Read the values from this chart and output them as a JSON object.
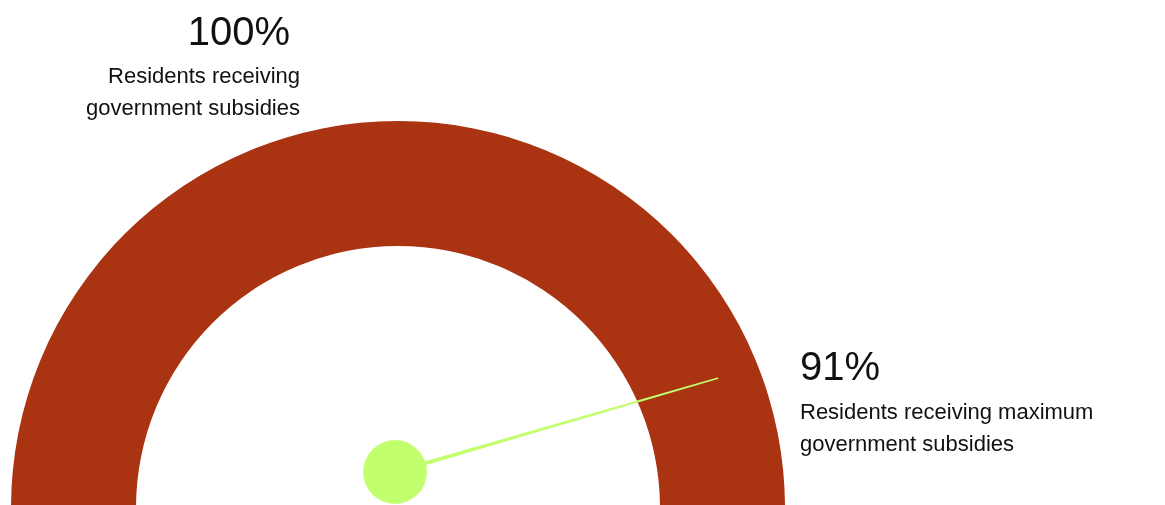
{
  "chart_data": {
    "type": "other",
    "categories": [
      "Residents receiving government subsidies",
      "Residents receiving maximum government subsidies"
    ],
    "values": [
      100,
      91
    ],
    "value_labels": [
      "100%",
      "91%"
    ],
    "colors": [
      "#aa3311",
      "#c2ff6e"
    ]
  }
}
